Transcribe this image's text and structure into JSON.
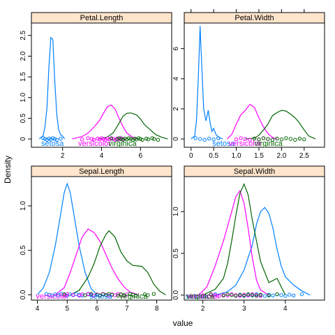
{
  "chart_data": {
    "type": "density",
    "title": "",
    "xlabel": "value",
    "ylabel": "Density",
    "groups": [
      {
        "name": "setosa",
        "color": "#0080ff"
      },
      {
        "name": "versicolor",
        "color": "#ff00ff"
      },
      {
        "name": "virginica",
        "color": "#006400"
      }
    ],
    "panels": [
      {
        "name": "Petal.Length",
        "xlim": [
          0.4,
          7.6
        ],
        "ylim": [
          -0.2,
          2.8
        ],
        "xticks": [
          2,
          4,
          6
        ],
        "yticks": [
          0,
          0.5,
          1.0,
          1.5,
          2.0,
          2.5
        ],
        "ytick_labels": [
          "0",
          "0.5",
          "1.0",
          "1.5",
          "2.0",
          "2.5"
        ],
        "group_label_x": [
          0.9,
          2.8,
          4.35
        ],
        "series": [
          {
            "group": "setosa",
            "x": [
              0.8,
              1.0,
              1.1,
              1.2,
              1.3,
              1.4,
              1.5,
              1.6,
              1.7,
              1.8,
              1.9,
              2.0,
              2.1
            ],
            "y": [
              0.0,
              0.08,
              0.3,
              0.75,
              1.75,
              2.45,
              2.4,
              1.4,
              0.6,
              0.22,
              0.1,
              0.07,
              0.0
            ]
          },
          {
            "group": "versicolor",
            "x": [
              2.5,
              3.0,
              3.3,
              3.6,
              3.9,
              4.1,
              4.3,
              4.5,
              4.7,
              4.9,
              5.1,
              5.3,
              5.6,
              5.9
            ],
            "y": [
              0.0,
              0.06,
              0.14,
              0.28,
              0.45,
              0.62,
              0.78,
              0.82,
              0.72,
              0.5,
              0.3,
              0.14,
              0.04,
              0.0
            ]
          },
          {
            "group": "virginica",
            "x": [
              3.9,
              4.3,
              4.6,
              4.9,
              5.1,
              5.3,
              5.5,
              5.8,
              6.0,
              6.2,
              6.5,
              6.8,
              7.1,
              7.4
            ],
            "y": [
              0.0,
              0.05,
              0.15,
              0.38,
              0.55,
              0.62,
              0.63,
              0.58,
              0.48,
              0.35,
              0.22,
              0.1,
              0.04,
              0.0
            ]
          }
        ],
        "rugs": [
          {
            "group": "setosa",
            "values": [
              1.0,
              1.1,
              1.2,
              1.3,
              1.4,
              1.5,
              1.6,
              1.7,
              1.9
            ]
          },
          {
            "group": "versicolor",
            "values": [
              3.0,
              3.3,
              3.5,
              3.6,
              3.8,
              3.9,
              4.0,
              4.1,
              4.2,
              4.3,
              4.4,
              4.5,
              4.6,
              4.7,
              4.8,
              4.9,
              5.0,
              5.1
            ]
          },
          {
            "group": "virginica",
            "values": [
              4.5,
              4.8,
              4.9,
              5.0,
              5.1,
              5.2,
              5.3,
              5.4,
              5.5,
              5.6,
              5.7,
              5.8,
              5.9,
              6.0,
              6.1,
              6.3,
              6.4,
              6.6,
              6.7,
              6.9
            ]
          }
        ]
      },
      {
        "name": "Petal.Width",
        "xlim": [
          -0.15,
          2.95
        ],
        "ylim": [
          -0.55,
          7.7
        ],
        "xticks": [
          0,
          0.5,
          1.0,
          1.5,
          2.0,
          2.5
        ],
        "yticks": [
          0,
          2,
          4,
          6
        ],
        "xtick_labels": [
          "0",
          "0.5",
          "1.0",
          "1.5",
          "2.0",
          "2.5"
        ],
        "ytick_labels": [
          "0",
          "2",
          "4",
          "6"
        ],
        "group_label_x": [
          0.47,
          0.83,
          1.4
        ],
        "series": [
          {
            "group": "setosa",
            "x": [
              0.0,
              0.08,
              0.12,
              0.16,
              0.2,
              0.24,
              0.28,
              0.33,
              0.38,
              0.42,
              0.46,
              0.5,
              0.55,
              0.62,
              0.7
            ],
            "y": [
              0.0,
              0.2,
              1.2,
              4.0,
              7.5,
              4.6,
              2.0,
              1.2,
              1.9,
              1.1,
              0.5,
              0.7,
              0.3,
              0.1,
              0.0
            ]
          },
          {
            "group": "versicolor",
            "x": [
              0.8,
              0.9,
              1.0,
              1.1,
              1.2,
              1.3,
              1.4,
              1.5,
              1.6,
              1.7,
              1.8,
              1.9
            ],
            "y": [
              0.0,
              0.3,
              1.0,
              1.6,
              1.9,
              2.3,
              2.1,
              1.4,
              0.8,
              0.35,
              0.1,
              0.0
            ]
          },
          {
            "group": "virginica",
            "x": [
              1.2,
              1.4,
              1.5,
              1.6,
              1.7,
              1.8,
              1.9,
              2.0,
              2.1,
              2.2,
              2.3,
              2.4,
              2.5,
              2.6,
              2.75
            ],
            "y": [
              0.0,
              0.05,
              0.25,
              0.6,
              1.0,
              1.55,
              1.75,
              1.9,
              1.85,
              1.65,
              1.4,
              1.05,
              0.6,
              0.2,
              0.0
            ]
          }
        ],
        "rugs": [
          {
            "group": "setosa",
            "values": [
              0.1,
              0.2,
              0.3,
              0.4,
              0.5,
              0.6
            ]
          },
          {
            "group": "versicolor",
            "values": [
              1.0,
              1.1,
              1.2,
              1.3,
              1.4,
              1.5,
              1.6,
              1.7,
              1.8
            ]
          },
          {
            "group": "virginica",
            "values": [
              1.4,
              1.5,
              1.6,
              1.7,
              1.8,
              1.9,
              2.0,
              2.1,
              2.2,
              2.3,
              2.4,
              2.5
            ]
          }
        ]
      },
      {
        "name": "Sepal.Length",
        "xlim": [
          3.8,
          8.5
        ],
        "ylim": [
          -0.06,
          1.33
        ],
        "xticks": [
          4,
          5,
          6,
          7,
          8
        ],
        "yticks": [
          0,
          0.5,
          1.0
        ],
        "ytick_labels": [
          "0.0",
          "0.5",
          "1.0"
        ],
        "group_label_x": [
          5.75,
          3.95,
          6.75
        ],
        "series": [
          {
            "group": "setosa",
            "x": [
              4.0,
              4.2,
              4.4,
              4.6,
              4.8,
              4.9,
              5.0,
              5.1,
              5.2,
              5.4,
              5.6,
              5.8,
              6.0
            ],
            "y": [
              0.0,
              0.08,
              0.25,
              0.55,
              0.95,
              1.15,
              1.25,
              1.15,
              0.95,
              0.55,
              0.25,
              0.07,
              0.0
            ]
          },
          {
            "group": "versicolor",
            "x": [
              4.6,
              4.9,
              5.1,
              5.3,
              5.5,
              5.7,
              5.9,
              6.1,
              6.3,
              6.5,
              6.7,
              6.9,
              7.1,
              7.4
            ],
            "y": [
              0.0,
              0.08,
              0.25,
              0.45,
              0.65,
              0.74,
              0.7,
              0.6,
              0.45,
              0.3,
              0.18,
              0.09,
              0.03,
              0.0
            ]
          },
          {
            "group": "virginica",
            "x": [
              5.1,
              5.4,
              5.7,
              5.9,
              6.1,
              6.3,
              6.4,
              6.6,
              6.8,
              7.0,
              7.2,
              7.5,
              7.7,
              7.9,
              8.1,
              8.3
            ],
            "y": [
              0.0,
              0.05,
              0.2,
              0.35,
              0.55,
              0.68,
              0.72,
              0.65,
              0.48,
              0.38,
              0.33,
              0.32,
              0.25,
              0.12,
              0.04,
              0.0
            ]
          }
        ],
        "rugs": [
          {
            "group": "setosa",
            "values": [
              4.3,
              4.4,
              4.5,
              4.6,
              4.7,
              4.8,
              4.9,
              5.0,
              5.1,
              5.2,
              5.3,
              5.4,
              5.5,
              5.7,
              5.8
            ]
          },
          {
            "group": "versicolor",
            "values": [
              4.9,
              5.0,
              5.2,
              5.4,
              5.5,
              5.6,
              5.7,
              5.8,
              5.9,
              6.0,
              6.1,
              6.2,
              6.3,
              6.4,
              6.5,
              6.6,
              6.7,
              6.8,
              6.9,
              7.0
            ]
          },
          {
            "group": "virginica",
            "values": [
              4.9,
              5.6,
              5.8,
              6.0,
              6.1,
              6.2,
              6.3,
              6.4,
              6.5,
              6.7,
              6.8,
              6.9,
              7.1,
              7.2,
              7.3,
              7.6,
              7.7,
              7.9
            ]
          }
        ]
      },
      {
        "name": "Sepal.Width",
        "xlim": [
          1.55,
          4.95
        ],
        "ylim": [
          -0.06,
          1.42
        ],
        "xticks": [
          2,
          3,
          4
        ],
        "yticks": [
          0,
          0.5,
          1.0
        ],
        "ytick_labels": [
          "0.0",
          "0.5",
          "1.0"
        ],
        "group_label_x": [
          1.58,
          1.62,
          1.6
        ],
        "series": [
          {
            "group": "setosa",
            "x": [
              2.3,
              2.6,
              2.8,
              3.0,
              3.2,
              3.3,
              3.4,
              3.5,
              3.6,
              3.7,
              3.8,
              3.9,
              4.0,
              4.2,
              4.4,
              4.6
            ],
            "y": [
              0.0,
              0.04,
              0.12,
              0.3,
              0.6,
              0.85,
              1.0,
              1.05,
              0.98,
              0.8,
              0.55,
              0.35,
              0.22,
              0.12,
              0.05,
              0.0
            ]
          },
          {
            "group": "versicolor",
            "x": [
              1.9,
              2.1,
              2.3,
              2.5,
              2.7,
              2.8,
              2.9,
              3.0,
              3.1,
              3.2,
              3.3,
              3.4,
              3.6
            ],
            "y": [
              0.0,
              0.1,
              0.35,
              0.65,
              1.0,
              1.18,
              1.25,
              1.1,
              0.8,
              0.45,
              0.18,
              0.06,
              0.0
            ]
          },
          {
            "group": "virginica",
            "x": [
              2.0,
              2.3,
              2.5,
              2.6,
              2.7,
              2.8,
              2.9,
              3.0,
              3.1,
              3.2,
              3.4,
              3.6,
              3.8,
              4.0
            ],
            "y": [
              0.0,
              0.07,
              0.2,
              0.38,
              0.65,
              0.95,
              1.22,
              1.33,
              1.2,
              0.9,
              0.4,
              0.15,
              0.2,
              0.0
            ]
          }
        ],
        "rugs": [
          {
            "group": "setosa",
            "values": [
              2.3,
              2.9,
              3.0,
              3.1,
              3.2,
              3.3,
              3.4,
              3.5,
              3.6,
              3.7,
              3.8,
              3.9,
              4.0,
              4.1,
              4.2,
              4.4
            ]
          },
          {
            "group": "versicolor",
            "values": [
              2.0,
              2.2,
              2.3,
              2.4,
              2.5,
              2.6,
              2.7,
              2.8,
              2.9,
              3.0,
              3.1,
              3.2,
              3.3,
              3.4
            ]
          },
          {
            "group": "virginica",
            "values": [
              2.2,
              2.5,
              2.6,
              2.7,
              2.8,
              2.9,
              3.0,
              3.1,
              3.2,
              3.3,
              3.4,
              3.6,
              3.8
            ]
          }
        ]
      }
    ]
  }
}
